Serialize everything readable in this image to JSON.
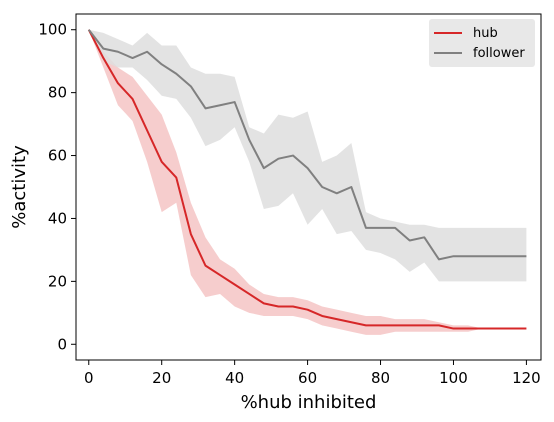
{
  "chart_data": {
    "type": "line",
    "title": "",
    "xlabel": "%hub inhibited",
    "ylabel": "%activity",
    "xlim": [
      -3.5,
      124
    ],
    "ylim": [
      -5,
      105
    ],
    "xticks": [
      0,
      20,
      40,
      60,
      80,
      100,
      120
    ],
    "yticks": [
      0,
      20,
      40,
      60,
      80,
      100
    ],
    "grid": false,
    "legend": "top-right",
    "x": [
      0,
      4,
      8,
      12,
      16,
      20,
      24,
      28,
      32,
      36,
      40,
      44,
      48,
      52,
      56,
      60,
      64,
      68,
      72,
      76,
      80,
      84,
      88,
      92,
      96,
      100,
      104,
      108,
      112,
      116,
      120
    ],
    "series": [
      {
        "name": "hub",
        "color": "#d62728",
        "band_color": "#f4c4c4",
        "values": [
          100,
          91,
          83,
          78,
          68,
          58,
          53,
          35,
          25,
          22,
          19,
          16,
          13,
          12,
          12,
          11,
          9,
          8,
          7,
          6,
          6,
          6,
          6,
          6,
          6,
          5,
          5,
          5,
          5,
          5,
          5
        ],
        "lower": [
          100,
          88,
          76,
          71,
          58,
          42,
          45,
          22,
          15,
          16,
          12,
          10,
          9,
          9,
          9,
          8,
          6,
          5,
          4,
          3,
          3,
          4,
          4,
          4,
          4,
          4,
          4,
          5,
          5,
          5,
          5
        ],
        "upper": [
          100,
          93,
          88,
          85,
          79,
          73,
          61,
          45,
          34,
          27,
          24,
          19,
          16,
          15,
          15,
          14,
          12,
          11,
          10,
          9,
          9,
          8,
          8,
          8,
          7,
          6,
          6,
          5,
          5,
          5,
          5
        ]
      },
      {
        "name": "follower",
        "color": "#808080",
        "band_color": "#dedede",
        "values": [
          100,
          94,
          93,
          91,
          93,
          89,
          86,
          82,
          75,
          76,
          77,
          65,
          56,
          59,
          60,
          56,
          50,
          48,
          50,
          37,
          37,
          37,
          33,
          34,
          27,
          28,
          28,
          28,
          28,
          28,
          28
        ],
        "lower": [
          100,
          90,
          88,
          88,
          84,
          79,
          78,
          72,
          63,
          65,
          69,
          58,
          43,
          44,
          48,
          38,
          43,
          35,
          36,
          30,
          29,
          27,
          23,
          26,
          20,
          20,
          20,
          20,
          20,
          20,
          20
        ],
        "upper": [
          100,
          99,
          97,
          95,
          99,
          95,
          95,
          88,
          86,
          86,
          85,
          69,
          67,
          73,
          72,
          74,
          58,
          60,
          64,
          42,
          40,
          39,
          38,
          38,
          37,
          37,
          37,
          37,
          37,
          37,
          37
        ]
      }
    ]
  }
}
